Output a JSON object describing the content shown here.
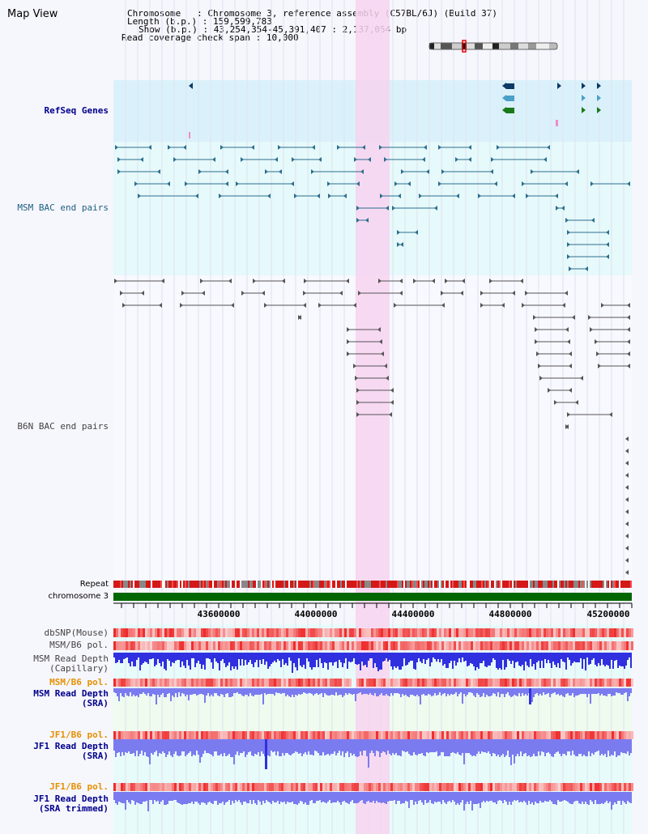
{
  "title": "Map View",
  "header": {
    "chromosome_key": "Chromosome",
    "chromosome_val": "Chromosome 3, reference assembly (C57BL/6J) (Build 37)",
    "length_key": "Length (b.p.)",
    "length_val": "159,599,783",
    "show_key": "Show (b.p.)",
    "show_val": "43,254,354-45,391,407 : 2,137,054 bp",
    "coverage_key": "Read coverage check span",
    "coverage_val": "10,000"
  },
  "tracks": {
    "refseq": "RefSeq Genes",
    "msm_bac": "MSM BAC end pairs",
    "b6n_bac": "B6N BAC end pairs",
    "repeat": "Repeat",
    "chromosome": "chromosome 3",
    "dbsnp": "dbSNP(Mouse)",
    "msm_b6_pol_1": "MSM/B6 pol.",
    "msm_depth_cap": "MSM Read Depth\n(Capillary)",
    "msm_b6_pol_2": "MSM/B6 pol.",
    "msm_depth_sra": "MSM Read Depth\n(SRA)",
    "jf1_b6_pol_1": "JF1/B6 pol.",
    "jf1_depth_sra": "JF1 Read Depth\n(SRA)",
    "jf1_b6_pol_2": "JF1/B6 pol.",
    "jf1_depth_trim": "JF1 Read Depth\n(SRA trimmed)"
  },
  "axis_ticks": [
    "43600000",
    "44000000",
    "44400000",
    "44800000",
    "45200000"
  ],
  "colors": {
    "refseq_bg": "#daf1fb",
    "msm_bg": "#e6f9fb",
    "b6n_bg": "#f8f8ff",
    "highlight": "#f7d3f0",
    "gene_dark": "#0c3a66",
    "gene_mid": "#4aa0c8",
    "gene_green": "#1a7a1a",
    "bac_teal": "#2c6e8c",
    "bac_gray": "#555555",
    "chrom_green": "#006600",
    "label_blue": "#00008b",
    "label_teal": "#206080",
    "label_orange": "#e69000",
    "depth_blue": "#3030e0",
    "depth_light": "#7b7bf0"
  }
}
